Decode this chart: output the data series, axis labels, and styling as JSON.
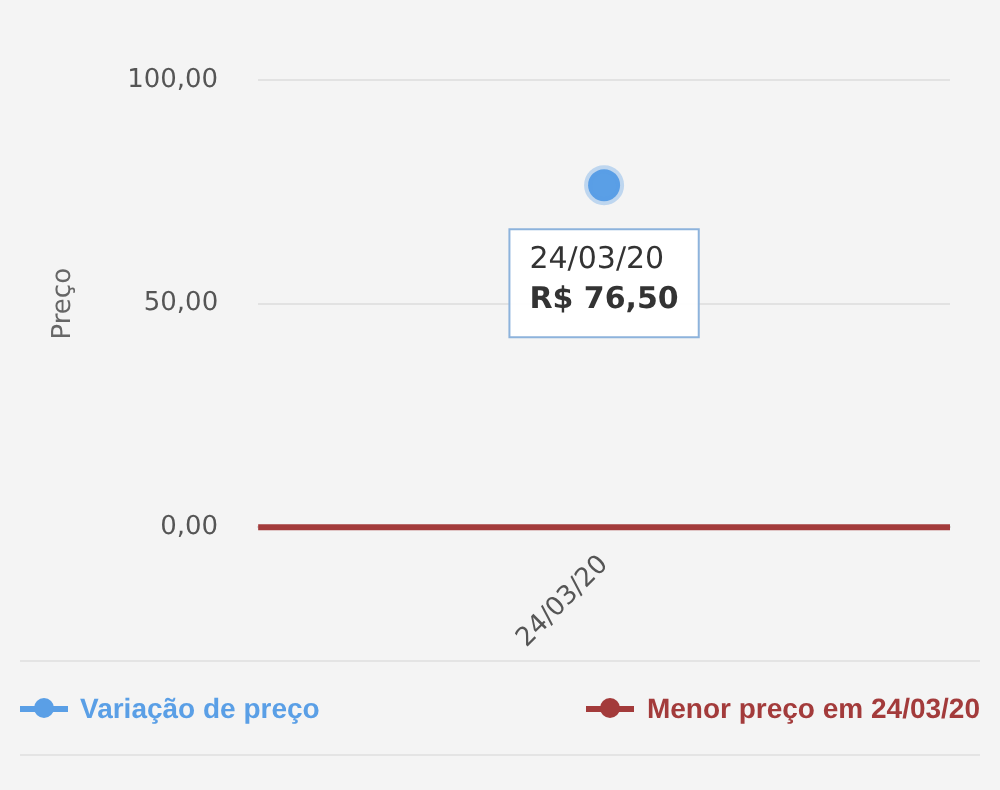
{
  "chart_data": {
    "type": "line",
    "ylabel": "Preço",
    "categories": [
      "24/03/20"
    ],
    "series": [
      {
        "name": "Variação de preço",
        "color": "#5a9fe6",
        "values": [
          76.5
        ]
      }
    ],
    "ref_lines": [
      {
        "axis": "y",
        "value": 0,
        "label": "Menor preço em 24/03/20",
        "color": "#a33b3b"
      }
    ],
    "ylim": [
      0,
      100
    ],
    "yticks": [
      {
        "value": 0,
        "label": "0,00"
      },
      {
        "value": 50,
        "label": "50,00"
      },
      {
        "value": 100,
        "label": "100,00"
      }
    ],
    "annotations": [
      {
        "text": "24/03/20\nR$ 76,50",
        "x": "24/03/20",
        "y": 76.5
      }
    ],
    "grid": "y",
    "legend": "bottom",
    "marker": "circle"
  }
}
